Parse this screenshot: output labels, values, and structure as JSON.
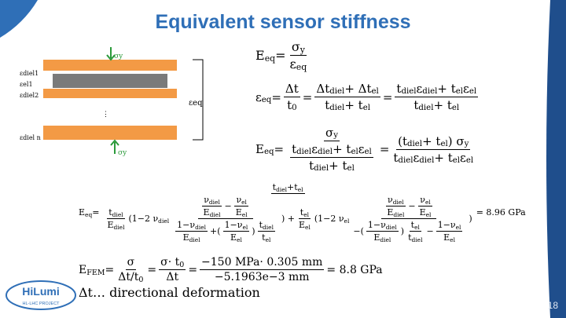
{
  "header": {
    "title": "Equivalent sensor stiffness"
  },
  "diagram": {
    "sigma_top": "σy",
    "layer_labels": [
      "εdiel1",
      "εel1",
      "εdiel2",
      "⋮",
      "εdiel n"
    ],
    "eps_eq": "εeq",
    "sigma_bottom": "σy"
  },
  "equations": [
    {
      "parts": [
        "E",
        {
          "sub": "eq"
        },
        " = ",
        {
          "frac": [
            [
              "σ",
              {
                "sub": "y"
              }
            ],
            [
              "ε",
              {
                "sub": "eq"
              }
            ]
          ]
        }
      ]
    },
    {
      "parts": [
        "ε",
        {
          "sub": "eq"
        },
        " = ",
        {
          "frac": [
            [
              "Δt"
            ],
            [
              "t",
              {
                "sub": "0"
              }
            ]
          ]
        },
        " = ",
        {
          "frac": [
            [
              "Δt",
              {
                "sub": "diel"
              },
              " + Δt",
              {
                "sub": "el"
              }
            ],
            [
              "t",
              {
                "sub": "diel"
              },
              " + t",
              {
                "sub": "el"
              }
            ]
          ]
        },
        " = ",
        {
          "frac": [
            [
              "t",
              {
                "sub": "diel"
              },
              "ε",
              {
                "sub": "diel"
              },
              " + t",
              {
                "sub": "el"
              },
              "ε",
              {
                "sub": "el"
              }
            ],
            [
              "t",
              {
                "sub": "diel"
              },
              " + t",
              {
                "sub": "el"
              }
            ]
          ]
        }
      ]
    },
    {
      "parts": [
        "E",
        {
          "sub": "eq"
        },
        " = ",
        {
          "frac": [
            [
              "σ",
              {
                "sub": "y"
              }
            ],
            [
              {
                "frac": [
                  [
                    "t",
                    {
                      "sub": "diel"
                    },
                    "ε",
                    {
                      "sub": "diel"
                    },
                    " + t",
                    {
                      "sub": "el"
                    },
                    "ε",
                    {
                      "sub": "el"
                    }
                  ],
                  [
                    "t",
                    {
                      "sub": "diel"
                    },
                    " + t",
                    {
                      "sub": "el"
                    }
                  ]
                ]
              }
            ]
          ]
        },
        " = ",
        {
          "frac": [
            [
              "(t",
              {
                "sub": "diel"
              },
              " + t",
              {
                "sub": "el"
              },
              ") σ",
              {
                "sub": "y"
              }
            ],
            [
              "t",
              {
                "sub": "diel"
              },
              "ε",
              {
                "sub": "diel"
              },
              " + t",
              {
                "sub": "el"
              },
              "ε",
              {
                "sub": "el"
              }
            ]
          ]
        }
      ]
    },
    {
      "parts": [
        "E",
        {
          "sub": "eq"
        },
        " = ",
        {
          "frac": [
            [
              "t",
              {
                "sub": "diel"
              },
              "+t",
              {
                "sub": "el"
              }
            ],
            [
              {
                "frac": [
                  [
                    "t",
                    {
                      "sub": "diel"
                    }
                  ],
                  [
                    "E",
                    {
                      "sub": "diel"
                    }
                  ]
                ]
              },
              "(1−2 ν",
              {
                "sub": "diel"
              },
              {
                "frac": [
                  [
                    {
                      "frac": [
                        [
                          "ν",
                          {
                            "sub": "diel"
                          }
                        ],
                        [
                          "E",
                          {
                            "sub": "diel"
                          }
                        ]
                      ]
                    },
                    "−",
                    {
                      "frac": [
                        [
                          "ν",
                          {
                            "sub": "el"
                          }
                        ],
                        [
                          "E",
                          {
                            "sub": "el"
                          }
                        ]
                      ]
                    }
                  ],
                  [
                    {
                      "frac": [
                        [
                          "1−ν",
                          {
                            "sub": "diel"
                          }
                        ],
                        [
                          "E",
                          {
                            "sub": "diel"
                          }
                        ]
                      ]
                    },
                    "+(",
                    {
                      "frac": [
                        [
                          "1−ν",
                          {
                            "sub": "el"
                          }
                        ],
                        [
                          "E",
                          {
                            "sub": "el"
                          }
                        ]
                      ]
                    },
                    ")",
                    {
                      "frac": [
                        [
                          "t",
                          {
                            "sub": "diel"
                          }
                        ],
                        [
                          "t",
                          {
                            "sub": "el"
                          }
                        ]
                      ]
                    }
                  ]
                ]
              },
              ") + ",
              {
                "frac": [
                  [
                    "t",
                    {
                      "sub": "el"
                    }
                  ],
                  [
                    "E",
                    {
                      "sub": "el"
                    }
                  ]
                ]
              },
              "(1−2 ν",
              {
                "sub": "el"
              },
              {
                "frac": [
                  [
                    {
                      "frac": [
                        [
                          "ν",
                          {
                            "sub": "diel"
                          }
                        ],
                        [
                          "E",
                          {
                            "sub": "diel"
                          }
                        ]
                      ]
                    },
                    "−",
                    {
                      "frac": [
                        [
                          "ν",
                          {
                            "sub": "el"
                          }
                        ],
                        [
                          "E",
                          {
                            "sub": "el"
                          }
                        ]
                      ]
                    }
                  ],
                  [
                    "−(",
                    {
                      "frac": [
                        [
                          "1−ν",
                          {
                            "sub": "diel"
                          }
                        ],
                        [
                          "E",
                          {
                            "sub": "diel"
                          }
                        ]
                      ]
                    },
                    ")",
                    {
                      "frac": [
                        [
                          "t",
                          {
                            "sub": "el"
                          }
                        ],
                        [
                          "t",
                          {
                            "sub": "diel"
                          }
                        ]
                      ]
                    },
                    "−",
                    {
                      "frac": [
                        [
                          "1−ν",
                          {
                            "sub": "el"
                          }
                        ],
                        [
                          "E",
                          {
                            "sub": "el"
                          }
                        ]
                      ]
                    }
                  ]
                ]
              },
              ")"
            ]
          ]
        },
        " = 8.96 GPa"
      ]
    },
    {
      "parts": [
        "E",
        {
          "sub": "FEM"
        },
        " = ",
        {
          "frac": [
            [
              "σ"
            ],
            [
              "Δt/t",
              {
                "sub": "0"
              }
            ]
          ]
        },
        " = ",
        {
          "frac": [
            [
              "σ· t",
              {
                "sub": "0"
              }
            ],
            [
              "Δt"
            ]
          ]
        },
        " = ",
        {
          "frac": [
            [
              "−150 MPa· 0.305 mm"
            ],
            [
              "−5.1963e−3 mm"
            ]
          ]
        },
        " = 8.8 GPa"
      ]
    }
  ],
  "note": "Δt… directional deformation",
  "logo": {
    "name": "HiLumi",
    "subtitle": "HL-LHC PROJECT"
  },
  "page_number": 18
}
